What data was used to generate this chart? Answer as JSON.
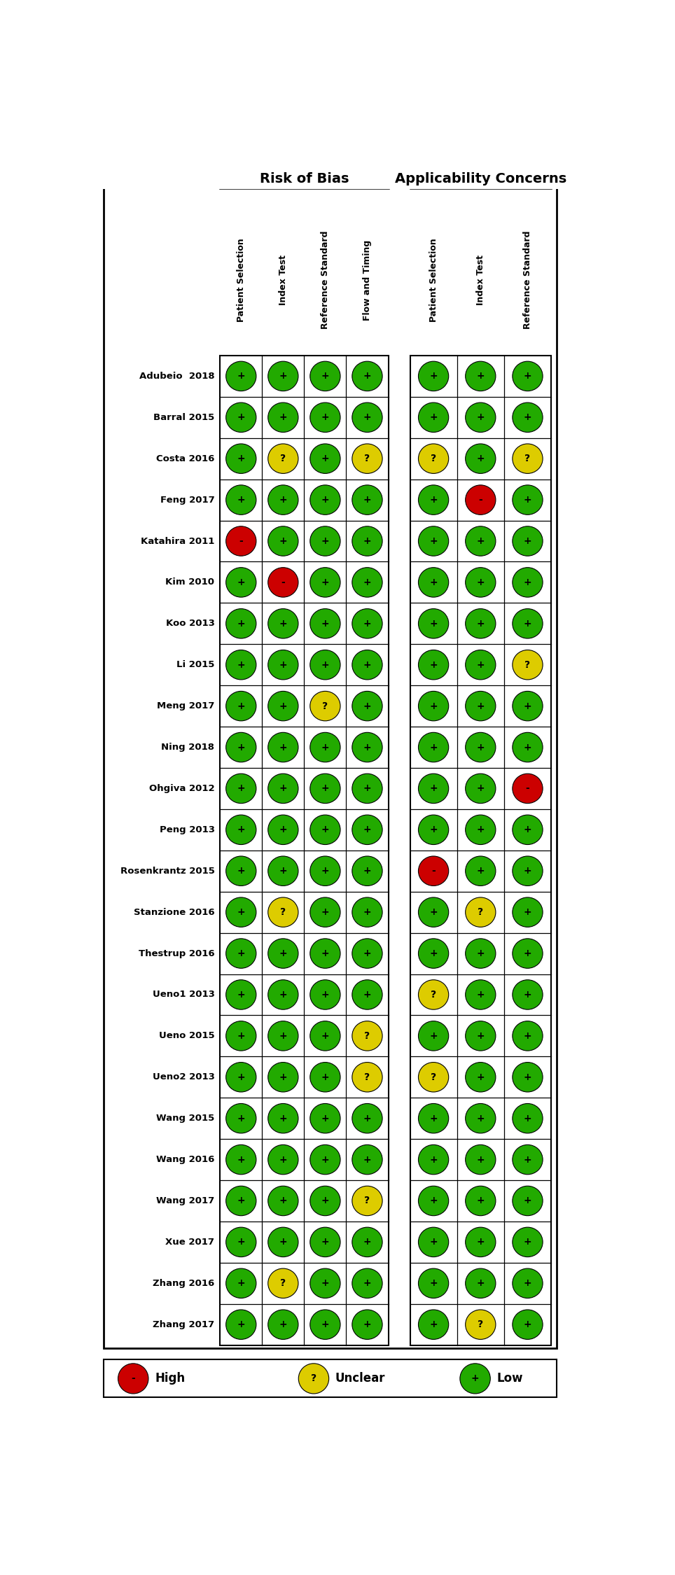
{
  "studies": [
    "Adubeio  2018",
    "Barral 2015",
    "Costa 2016",
    "Feng 2017",
    "Katahira 2011",
    "Kim 2010",
    "Koo 2013",
    "Li 2015",
    "Meng 2017",
    "Ning 2018",
    "Ohgiva 2012",
    "Peng 2013",
    "Rosenkrantz 2015",
    "Stanzione 2016",
    "Thestrup 2016",
    "Ueno1 2013",
    "Ueno 2015",
    "Ueno2 2013",
    "Wang 2015",
    "Wang 2016",
    "Wang 2017",
    "Xue 2017",
    "Zhang 2016",
    "Zhang 2017"
  ],
  "rob_columns": [
    "Patient Selection",
    "Index Test",
    "Reference Standard",
    "Flow and Timing"
  ],
  "app_columns": [
    "Patient Selection",
    "Index Test",
    "Reference Standard"
  ],
  "rob_data": [
    [
      "G",
      "G",
      "G",
      "G"
    ],
    [
      "G",
      "G",
      "G",
      "G"
    ],
    [
      "G",
      "Y",
      "G",
      "Y"
    ],
    [
      "G",
      "G",
      "G",
      "G"
    ],
    [
      "R",
      "G",
      "G",
      "G"
    ],
    [
      "G",
      "R",
      "G",
      "G"
    ],
    [
      "G",
      "G",
      "G",
      "G"
    ],
    [
      "G",
      "G",
      "G",
      "G"
    ],
    [
      "G",
      "G",
      "Y",
      "G"
    ],
    [
      "G",
      "G",
      "G",
      "G"
    ],
    [
      "G",
      "G",
      "G",
      "G"
    ],
    [
      "G",
      "G",
      "G",
      "G"
    ],
    [
      "G",
      "G",
      "G",
      "G"
    ],
    [
      "G",
      "Y",
      "G",
      "G"
    ],
    [
      "G",
      "G",
      "G",
      "G"
    ],
    [
      "G",
      "G",
      "G",
      "G"
    ],
    [
      "G",
      "G",
      "G",
      "Y"
    ],
    [
      "G",
      "G",
      "G",
      "Y"
    ],
    [
      "G",
      "G",
      "G",
      "G"
    ],
    [
      "G",
      "G",
      "G",
      "G"
    ],
    [
      "G",
      "G",
      "G",
      "Y"
    ],
    [
      "G",
      "G",
      "G",
      "G"
    ],
    [
      "G",
      "Y",
      "G",
      "G"
    ],
    [
      "G",
      "G",
      "G",
      "G"
    ]
  ],
  "app_data": [
    [
      "G",
      "G",
      "G"
    ],
    [
      "G",
      "G",
      "G"
    ],
    [
      "Y",
      "G",
      "Y"
    ],
    [
      "G",
      "R",
      "G"
    ],
    [
      "G",
      "G",
      "G"
    ],
    [
      "G",
      "G",
      "G"
    ],
    [
      "G",
      "G",
      "G"
    ],
    [
      "G",
      "G",
      "Y"
    ],
    [
      "G",
      "G",
      "G"
    ],
    [
      "G",
      "G",
      "G"
    ],
    [
      "G",
      "G",
      "R"
    ],
    [
      "G",
      "G",
      "G"
    ],
    [
      "R",
      "G",
      "G"
    ],
    [
      "G",
      "Y",
      "G"
    ],
    [
      "G",
      "G",
      "G"
    ],
    [
      "Y",
      "G",
      "G"
    ],
    [
      "G",
      "G",
      "G"
    ],
    [
      "Y",
      "G",
      "G"
    ],
    [
      "G",
      "G",
      "G"
    ],
    [
      "G",
      "G",
      "G"
    ],
    [
      "G",
      "G",
      "G"
    ],
    [
      "G",
      "G",
      "G"
    ],
    [
      "G",
      "G",
      "G"
    ],
    [
      "G",
      "Y",
      "G"
    ]
  ],
  "color_map": {
    "G": "#22aa00",
    "Y": "#ddcc00",
    "R": "#cc0000"
  },
  "symbol_map": {
    "G": "+",
    "Y": "?",
    "R": "-"
  },
  "title": "Risk of Bias",
  "title2": "Applicability Concerns",
  "bg": "#ffffff",
  "fg": "#000000",
  "fig_width": 9.64,
  "fig_height": 22.5,
  "dpi": 100
}
